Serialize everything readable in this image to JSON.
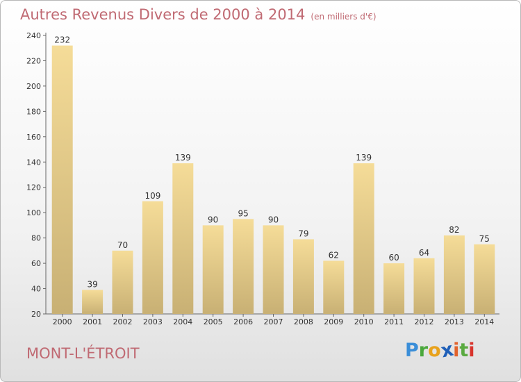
{
  "header": {
    "title": "Autres Revenus Divers de 2000 à 2014",
    "subtitle": "(en milliers d'€)"
  },
  "footer": {
    "place": "MONT-L'ÉTROIT",
    "logo": {
      "letters": [
        "P",
        "r",
        "o",
        "x",
        "i",
        "t",
        "i"
      ],
      "colors": [
        "#3a8ed8",
        "#4aa83c",
        "#e8a21c",
        "#1f5fb8",
        "#e2622c",
        "#5aaa40",
        "#d8342c"
      ]
    }
  },
  "chart_data": {
    "type": "bar",
    "categories": [
      "2000",
      "2001",
      "2002",
      "2003",
      "2004",
      "2005",
      "2006",
      "2007",
      "2008",
      "2009",
      "2010",
      "2011",
      "2012",
      "2013",
      "2014"
    ],
    "values": [
      232,
      39,
      70,
      109,
      139,
      90,
      95,
      90,
      79,
      62,
      139,
      60,
      64,
      82,
      75
    ],
    "title": "Autres Revenus Divers de 2000 à 2014",
    "xlabel": "",
    "ylabel": "",
    "ylim": [
      20,
      240
    ],
    "yticks": [
      20,
      40,
      60,
      80,
      100,
      120,
      140,
      160,
      180,
      200,
      220,
      240
    ],
    "grid": false,
    "colors": {
      "bar_top": "#f5dc98",
      "bar_bottom": "#c8b074",
      "axis": "#666666"
    }
  }
}
